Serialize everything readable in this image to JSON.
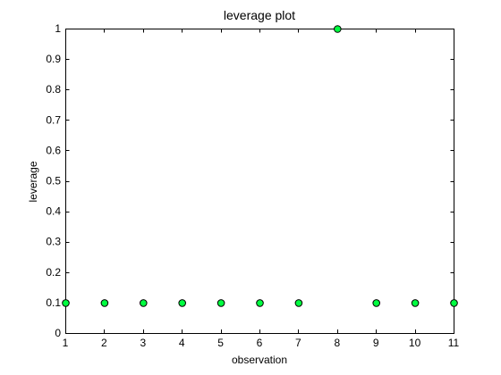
{
  "chart_data": {
    "type": "scatter",
    "title": "leverage plot",
    "xlabel": "observation",
    "ylabel": "leverage",
    "xlim": [
      1,
      11
    ],
    "ylim": [
      0,
      1
    ],
    "grid": false,
    "xticks": [
      1,
      2,
      3,
      4,
      5,
      6,
      7,
      8,
      9,
      10,
      11
    ],
    "yticks": [
      0,
      0.1,
      0.2,
      0.3,
      0.4,
      0.5,
      0.6,
      0.7,
      0.8,
      0.9,
      1
    ],
    "xtick_labels": [
      "1",
      "2",
      "3",
      "4",
      "5",
      "6",
      "7",
      "8",
      "9",
      "10",
      "11"
    ],
    "ytick_labels": [
      "0",
      "0.1",
      "0.2",
      "0.3",
      "0.4",
      "0.5",
      "0.6",
      "0.7",
      "0.8",
      "0.9",
      "1"
    ],
    "series": [
      {
        "name": "leverage",
        "marker_color": "#00ff40",
        "edge_color": "#000000",
        "x": [
          1,
          2,
          3,
          4,
          5,
          6,
          7,
          8,
          9,
          10,
          11
        ],
        "y": [
          0.1,
          0.1,
          0.1,
          0.1,
          0.1,
          0.1,
          0.1,
          1.0,
          0.1,
          0.1,
          0.1
        ]
      }
    ]
  }
}
